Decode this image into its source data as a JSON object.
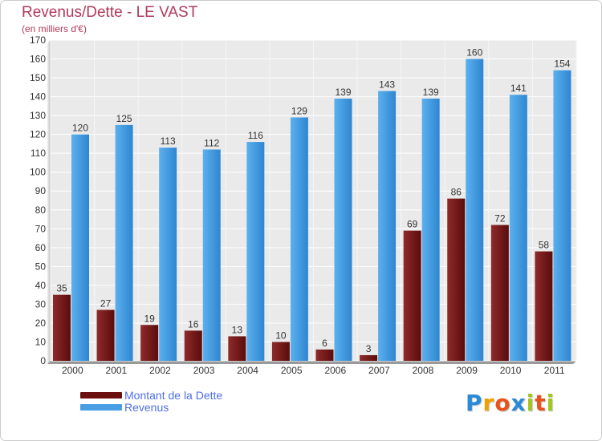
{
  "header": {
    "title": "Revenus/Dette - LE VAST",
    "subtitle": "(en milliers d'€)"
  },
  "chart_data": {
    "type": "bar",
    "categories": [
      "2000",
      "2001",
      "2002",
      "2003",
      "2004",
      "2005",
      "2006",
      "2007",
      "2008",
      "2009",
      "2010",
      "2011"
    ],
    "series": [
      {
        "name": "Montant de la Dette",
        "color": "#7a1a1a",
        "values": [
          35,
          27,
          19,
          16,
          13,
          10,
          6,
          3,
          69,
          86,
          72,
          58
        ]
      },
      {
        "name": "Revenus",
        "color": "#4a9fe4",
        "values": [
          120,
          125,
          113,
          112,
          116,
          129,
          139,
          143,
          139,
          160,
          141,
          154
        ]
      }
    ],
    "ylim": [
      0,
      170
    ],
    "yticks": [
      0,
      10,
      20,
      30,
      40,
      50,
      60,
      70,
      80,
      90,
      100,
      110,
      120,
      130,
      140,
      150,
      160,
      170
    ],
    "grid": true,
    "legend_position": "bottom-left",
    "data_labels": true
  },
  "legend": {
    "items": [
      {
        "label": "Montant de la Dette",
        "color": "#6b0f0f"
      },
      {
        "label": "Revenus",
        "color": "#4a9fe4"
      }
    ]
  },
  "logo": {
    "letters": [
      "P",
      "r",
      "o",
      "x",
      "i",
      "t",
      "i"
    ],
    "colors": [
      "#2b8ad8",
      "#f0a000",
      "#e8531c",
      "#2b8ad8",
      "#a4c520",
      "#e8531c",
      "#a4c520"
    ]
  }
}
